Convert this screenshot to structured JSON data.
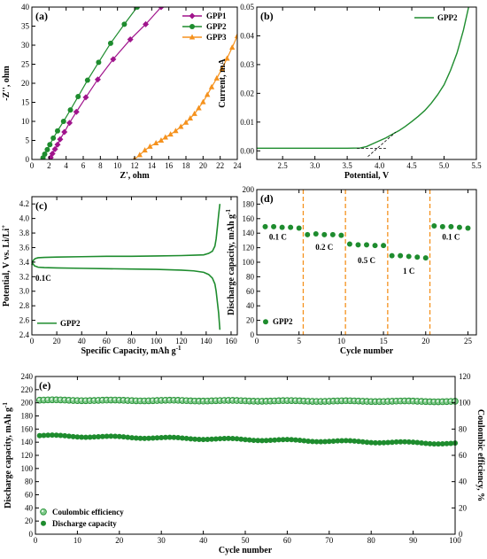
{
  "chart_data": [
    {
      "panel": "(a)",
      "type": "scatter",
      "xlabel": "Z', ohm",
      "ylabel": "-Z'', ohm",
      "xlim": [
        0,
        24
      ],
      "ylim": [
        0,
        40
      ],
      "xticks": [
        0,
        2,
        4,
        6,
        8,
        10,
        12,
        14,
        16,
        18,
        20,
        22,
        24
      ],
      "yticks": [
        0,
        5,
        10,
        15,
        20,
        25,
        30,
        35,
        40
      ],
      "legend_position": "top-right",
      "series": [
        {
          "name": "GPP1",
          "color": "#a0148c",
          "marker": "diamond",
          "x": [
            2.2,
            2.4,
            2.7,
            3.0,
            3.3,
            3.8,
            4.4,
            5.2,
            6.3,
            7.7,
            9.5,
            11.5,
            13.3,
            15.1
          ],
          "y": [
            0.5,
            1.5,
            2.7,
            3.9,
            5.3,
            7.2,
            9.6,
            12.5,
            16.3,
            21.0,
            26.3,
            31.5,
            35.5,
            40.0
          ]
        },
        {
          "name": "GPP2",
          "color": "#1e8c2e",
          "marker": "circle",
          "x": [
            1.3,
            1.5,
            1.8,
            2.1,
            2.5,
            3.0,
            3.7,
            4.5,
            5.4,
            6.5,
            7.8,
            9.2,
            10.8,
            12.3
          ],
          "y": [
            0.4,
            1.4,
            2.6,
            3.9,
            5.6,
            7.5,
            10.0,
            13.0,
            16.5,
            20.8,
            25.5,
            30.5,
            35.5,
            40.0
          ]
        },
        {
          "name": "GPP3",
          "color": "#f5921e",
          "marker": "triangle",
          "x": [
            12.0,
            12.6,
            13.2,
            13.8,
            14.5,
            15.1,
            15.6,
            16.2,
            16.8,
            17.4,
            18.0,
            18.5,
            19.0,
            19.5,
            20.0,
            20.5,
            21.0,
            21.6,
            22.2,
            22.8,
            23.4,
            24.0
          ],
          "y": [
            0.1,
            1.2,
            2.4,
            3.4,
            4.3,
            5.0,
            5.8,
            6.6,
            7.5,
            8.6,
            9.7,
            10.8,
            12.0,
            13.5,
            15.1,
            17.0,
            19.0,
            21.3,
            23.8,
            26.5,
            29.4,
            32.4
          ]
        }
      ]
    },
    {
      "panel": "(b)",
      "type": "line",
      "xlabel": "Potential, V",
      "ylabel": "Current, mA",
      "xlim": [
        2.1,
        5.5
      ],
      "ylim": [
        -0.003,
        0.05
      ],
      "xticks": [
        2.5,
        3.0,
        3.5,
        4.0,
        4.5,
        5.0,
        5.5
      ],
      "xtick_labels": [
        "2.5",
        "3.0",
        "3.5",
        "4.0",
        "4.5",
        "5.0",
        "5.5"
      ],
      "yticks": [
        0.0,
        0.01,
        0.02,
        0.03,
        0.04,
        0.05
      ],
      "ytick_labels": [
        "0.00",
        "0.01",
        "0.02",
        "0.03",
        "0.04",
        "0.05"
      ],
      "legend_position": "top-left",
      "series": [
        {
          "name": "GPP2",
          "color": "#1e8c2e",
          "x": [
            2.1,
            2.5,
            3.0,
            3.5,
            3.7,
            3.8,
            3.9,
            4.0,
            4.1,
            4.2,
            4.3,
            4.4,
            4.5,
            4.6,
            4.7,
            4.8,
            4.9,
            5.0,
            5.1,
            5.2,
            5.3,
            5.38
          ],
          "y": [
            0.0009,
            0.0009,
            0.0009,
            0.0009,
            0.001,
            0.0015,
            0.0025,
            0.0035,
            0.0045,
            0.0058,
            0.007,
            0.0085,
            0.0102,
            0.012,
            0.014,
            0.0165,
            0.0195,
            0.023,
            0.028,
            0.034,
            0.042,
            0.05
          ]
        }
      ],
      "annotations": {
        "tangent_lines": true,
        "crossing_x": 3.9
      }
    },
    {
      "panel": "(c)",
      "type": "line",
      "xlabel": "Specific Capacity, mAh g",
      "xlabel_exponent": "-1",
      "ylabel": "Potential, V vs. Li/Li",
      "ylabel_superscript": "+",
      "xlim": [
        0,
        165
      ],
      "ylim": [
        2.4,
        4.3
      ],
      "xticks": [
        0,
        20,
        40,
        60,
        80,
        100,
        120,
        140,
        160
      ],
      "yticks": [
        2.4,
        2.6,
        2.8,
        3.0,
        3.2,
        3.4,
        3.6,
        3.8,
        4.0,
        4.2
      ],
      "ytick_labels": [
        "2.4",
        "2.6",
        "2.8",
        "3.0",
        "3.2",
        "3.4",
        "3.6",
        "3.8",
        "4.0",
        "4.2"
      ],
      "legend_position": "bottom-left",
      "rate_label": "0.1C",
      "series": [
        {
          "name": "GPP2 charge",
          "legend": "GPP2",
          "color": "#1e8c2e",
          "x": [
            0,
            1,
            2,
            3,
            5,
            10,
            20,
            40,
            60,
            80,
            100,
            120,
            130,
            138,
            142,
            145,
            147,
            148,
            149,
            150,
            151
          ],
          "y": [
            3.36,
            3.42,
            3.44,
            3.45,
            3.46,
            3.465,
            3.47,
            3.475,
            3.48,
            3.48,
            3.485,
            3.49,
            3.495,
            3.5,
            3.52,
            3.55,
            3.62,
            3.72,
            3.88,
            4.05,
            4.2
          ]
        },
        {
          "name": "GPP2 discharge",
          "color": "#1e8c2e",
          "x": [
            0,
            2,
            5,
            10,
            20,
            40,
            60,
            80,
            100,
            120,
            130,
            138,
            142,
            145,
            147,
            148,
            149,
            150,
            151
          ],
          "y": [
            3.4,
            3.35,
            3.33,
            3.325,
            3.32,
            3.315,
            3.31,
            3.305,
            3.3,
            3.29,
            3.28,
            3.26,
            3.23,
            3.18,
            3.1,
            3.0,
            2.85,
            2.7,
            2.47
          ]
        }
      ]
    },
    {
      "panel": "(d)",
      "type": "scatter",
      "xlabel": "Cycle number",
      "ylabel": "Discharge capacity, mAh g",
      "ylabel_exponent": "-1",
      "xlim": [
        0,
        26
      ],
      "ylim": [
        0,
        200
      ],
      "xticks": [
        0,
        5,
        10,
        15,
        20,
        25
      ],
      "yticks": [
        0,
        20,
        40,
        60,
        80,
        100,
        120,
        140,
        160,
        180,
        200
      ],
      "legend_position": "bottom-left",
      "series": [
        {
          "name": "GPP2",
          "color": "#1e8c2e",
          "marker": "circle",
          "x": [
            1,
            2,
            3,
            4,
            5,
            6,
            7,
            8,
            9,
            10,
            11,
            12,
            13,
            14,
            15,
            16,
            17,
            18,
            19,
            20,
            21,
            22,
            23,
            24,
            25
          ],
          "y": [
            149,
            149,
            148,
            148,
            147,
            138,
            139,
            138,
            138,
            137,
            125,
            124,
            124,
            123,
            123,
            109,
            109,
            108,
            107,
            106,
            150,
            149,
            149,
            148,
            147
          ]
        }
      ],
      "dividers_x": [
        5.5,
        10.5,
        15.5,
        20.5
      ],
      "rate_labels": [
        {
          "text": "0.1 C",
          "x": 2.5,
          "y": 131
        },
        {
          "text": "0.2 C",
          "x": 8,
          "y": 117
        },
        {
          "text": "0.5 C",
          "x": 13,
          "y": 99
        },
        {
          "text": "1 C",
          "x": 18,
          "y": 84
        },
        {
          "text": "0.1 C",
          "x": 23,
          "y": 131
        }
      ]
    },
    {
      "panel": "(e)",
      "type": "scatter",
      "xlabel": "Cycle number",
      "ylabel": "Discharge capacity, mAh g",
      "ylabel_exponent": "-1",
      "y2label": "Coulombic efficiency, %",
      "xlim": [
        0,
        100
      ],
      "ylim": [
        0,
        240
      ],
      "y2lim": [
        0,
        120
      ],
      "xticks": [
        0,
        10,
        20,
        30,
        40,
        50,
        60,
        70,
        80,
        90,
        100
      ],
      "yticks": [
        0,
        20,
        40,
        60,
        80,
        100,
        120,
        140,
        160,
        180,
        200,
        220,
        240
      ],
      "y2ticks": [
        0,
        20,
        40,
        60,
        80,
        100,
        120
      ],
      "legend_position": "bottom-left",
      "series": [
        {
          "name": "Coulombic efficiency",
          "axis": "right",
          "color": "#1e8c2e",
          "marker": "sphere-light",
          "x_start": 1,
          "x_end": 100,
          "y_start": 102,
          "y_end": 101
        },
        {
          "name": "Discharge capacity",
          "axis": "left",
          "color": "#1e8c2e",
          "marker": "circle",
          "x_start": 1,
          "x_end": 100,
          "y_start": 150,
          "y_end": 138
        }
      ]
    }
  ]
}
